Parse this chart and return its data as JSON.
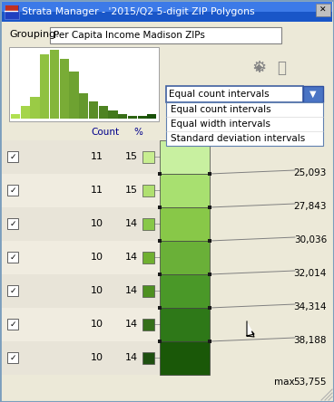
{
  "title": "Strata Manager - '2015/Q2 5-digit ZIP Polygons",
  "grouping_label": "Grouping:",
  "grouping_value": "Per Capita Income Madison ZIPs",
  "dropdown_selected": "Equal count intervals",
  "dropdown_options": [
    "Equal count intervals",
    "Equal width intervals",
    "Standard deviation intervals"
  ],
  "table_headers": [
    "Count",
    "%"
  ],
  "rows": [
    {
      "count": 11,
      "pct": 15,
      "color": "#c8ee90"
    },
    {
      "count": 11,
      "pct": 15,
      "color": "#b0e070"
    },
    {
      "count": 10,
      "pct": 14,
      "color": "#88c848"
    },
    {
      "count": 10,
      "pct": 14,
      "color": "#70b030"
    },
    {
      "count": 10,
      "pct": 14,
      "color": "#4e9020"
    },
    {
      "count": 10,
      "pct": 14,
      "color": "#357018"
    },
    {
      "count": 10,
      "pct": 14,
      "color": "#1e5010"
    }
  ],
  "gradient_colors": [
    "#c8f0a0",
    "#a8e070",
    "#88c848",
    "#6ab038",
    "#4a9828",
    "#2e7818",
    "#1a5808"
  ],
  "boundary_values": [
    "25,093",
    "27,843",
    "30,036",
    "32,014",
    "34,314",
    "38,188"
  ],
  "max_label": "max",
  "max_value": "53,755",
  "hist_heights": [
    0.5,
    1.5,
    2.5,
    7.5,
    8.0,
    7.0,
    5.5,
    3.0,
    2.0,
    1.5,
    1.0,
    0.5,
    0.3,
    0.3,
    0.5
  ],
  "hist_bar_colors": [
    "#c0ec88",
    "#a8dc68",
    "#98cc58",
    "#88bc48",
    "#78a838",
    "#689030",
    "#508020",
    "#386010",
    "#285008",
    "#184000",
    "#283800",
    "#1c3000",
    "#283808",
    "#204000",
    "#183000"
  ],
  "bg_color": "#d4d0c8",
  "main_bg": "#ece9d8",
  "titlebar_color": "#0a246a",
  "window_frame": "#7b9ebd"
}
